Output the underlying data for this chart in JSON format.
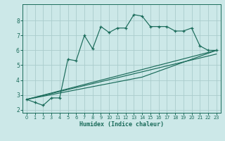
{
  "xlabel": "Humidex (Indice chaleur)",
  "bg_color": "#cce8e8",
  "grid_color": "#aacccc",
  "line_color": "#1a6b5a",
  "xlim": [
    -0.5,
    23.5
  ],
  "ylim": [
    1.8,
    9.1
  ],
  "xticks": [
    0,
    1,
    2,
    3,
    4,
    5,
    6,
    7,
    8,
    9,
    10,
    11,
    12,
    13,
    14,
    15,
    16,
    17,
    18,
    19,
    20,
    21,
    22,
    23
  ],
  "yticks": [
    2,
    3,
    4,
    5,
    6,
    7,
    8
  ],
  "scatter_x": [
    0,
    1,
    2,
    3,
    4,
    5,
    6,
    7,
    8,
    9,
    10,
    11,
    12,
    13,
    14,
    15,
    16,
    17,
    18,
    19,
    20,
    21,
    22,
    23
  ],
  "scatter_y": [
    2.7,
    2.5,
    2.3,
    2.8,
    2.8,
    5.4,
    5.3,
    7.0,
    6.1,
    7.6,
    7.2,
    7.5,
    7.5,
    8.4,
    8.3,
    7.6,
    7.6,
    7.6,
    7.3,
    7.3,
    7.5,
    6.3,
    6.0,
    6.0
  ],
  "line1_x": [
    0,
    23
  ],
  "line1_y": [
    2.7,
    6.0
  ],
  "line2_x": [
    0,
    14,
    23
  ],
  "line2_y": [
    2.7,
    4.2,
    6.0
  ],
  "line3_x": [
    0,
    23
  ],
  "line3_y": [
    2.7,
    5.75
  ]
}
